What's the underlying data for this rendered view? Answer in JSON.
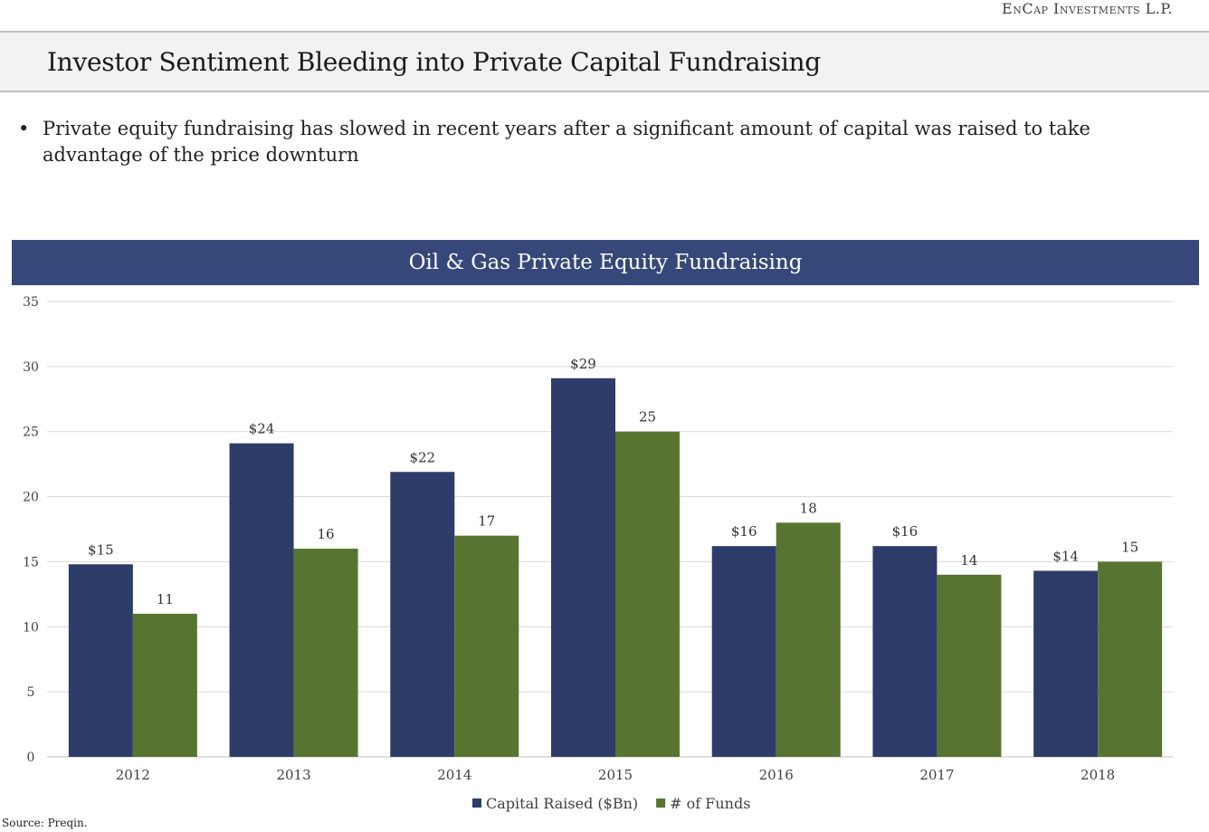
{
  "header": {
    "logo_text": "EnCap Investments L.P.",
    "title": "Investor Sentiment Bleeding into Private Capital Fundraising"
  },
  "bullet": {
    "text": "Private equity fundraising has slowed in recent years after a significant amount of capital was raised to take advantage of the price downturn"
  },
  "chart_data": {
    "type": "bar",
    "title": "Oil & Gas Private Equity Fundraising",
    "categories": [
      "2012",
      "2013",
      "2014",
      "2015",
      "2016",
      "2017",
      "2018"
    ],
    "series": [
      {
        "name": "Capital Raised ($Bn)",
        "color": "#2e3c69",
        "values": [
          14.8,
          24.1,
          21.9,
          29.1,
          16.2,
          16.2,
          14.3
        ],
        "labels": [
          "$15",
          "$24",
          "$22",
          "$29",
          "$16",
          "$16",
          "$14"
        ]
      },
      {
        "name": "# of Funds",
        "color": "#577530",
        "values": [
          11,
          16,
          17,
          25,
          18,
          14,
          15
        ],
        "labels": [
          "11",
          "16",
          "17",
          "25",
          "18",
          "14",
          "15"
        ]
      }
    ],
    "ylim": [
      0,
      35
    ],
    "yticks": [
      0,
      5,
      10,
      15,
      20,
      25,
      30,
      35
    ],
    "grid": true,
    "legend": "bottom"
  },
  "footer": {
    "source": "Source: Preqin."
  }
}
